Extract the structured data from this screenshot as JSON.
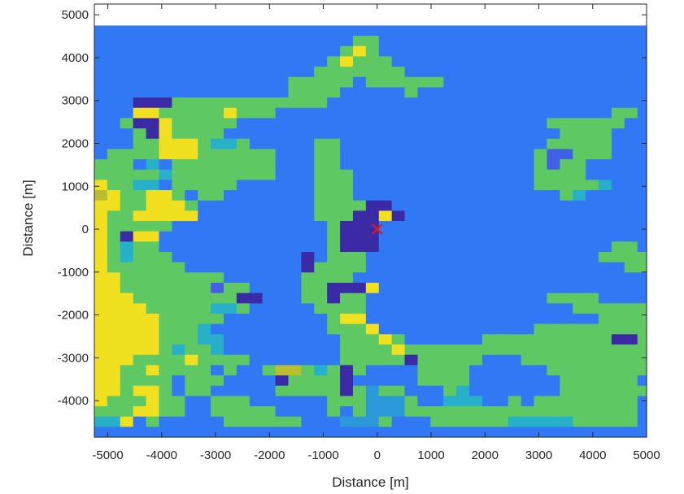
{
  "chart_data": {
    "type": "heatmap",
    "title": "",
    "xlabel": "Distance [m]",
    "ylabel": "Distance [m]",
    "xlim": [
      -5250,
      5000
    ],
    "ylim": [
      -4850,
      5250
    ],
    "xticks": [
      -5000,
      -4000,
      -3000,
      -2000,
      -1000,
      0,
      1000,
      2000,
      3000,
      4000,
      5000
    ],
    "xtick_labels": [
      "-5000",
      "-4000",
      "-3000",
      "-2000",
      "-1000",
      "0",
      "1000",
      "2000",
      "3000",
      "4000",
      "5000"
    ],
    "yticks": [
      -4000,
      -3000,
      -2000,
      -1000,
      0,
      1000,
      2000,
      3000,
      4000,
      5000
    ],
    "ytick_labels": [
      "-4000",
      "-3000",
      "-2000",
      "-1000",
      "0",
      "1000",
      "2000",
      "3000",
      "4000",
      "5000"
    ],
    "grid": false,
    "cell_size_m": 240,
    "x_start_m": -5250,
    "y_start_m": -4850,
    "colors": {
      "B": "#3179f4",
      "G": "#5ec962",
      "Y": "#f1e01f",
      "N": "#3b2aa6",
      "C": "#27b0c9",
      "L": "#2c9ad8",
      "O": "#bcbe30",
      "M": "#4160e6"
    },
    "rows_top_to_bottom": [
      "BBBBBBBBBBBBBBBBBBBBBBBBBBBBBBBBBBBBBBBBBBB",
      "BBBBBBBBBBBBBBBBBBBBGGBBBBBBBBBBBBBBBBBBBBB",
      "BBBBBBBBBBBBBBBBBBBGYGBBBBBBBBBBBBBBBBBBBBB",
      "BBBBBBBBBBBBBBBBBBGYGGGBBBBBBBBBBBBBBBBBBBB",
      "BBBBBBBBBBBBBBBBBGGGGGGGBBBBBBBBBBBBBBBBBBB",
      "BBBBBBBBBBBBBBBGGGGGBGGGGGGBBBBBBBBBBBBBBBB",
      "BBBBBBBBBBBBBBBGGGGBBBBBGBBBBBBBBBBBBBBBBBB",
      "BBBNNNGGGGGGGGGGGGBBBBBBBBBBBBBBBBBBBBBBBBB",
      "BBBYYGGGGGYGGGBBBBBBBBBBBBBBBBBBBBBBBBBBGGB",
      "BBGNNYGGGGGBBBBBBBBBBBBBBBBBBBBBBBBGGGGGGBB",
      "BBBGNYGGGGBBBBBBBBBBBBBBBBBBBBBBBBBBGGGGBBB",
      "BBBGGYYYGCCGBBBBBGGBBBBBBBBBBBBBBBBGGGGGBBB",
      "BGGGGYYYGGGGGGBBBGGBBBBBBBBBBBBBBBGMMGGGBBB",
      "GGGBCBGGGGGGGGBBBGGBBBBBBBBBBBBBBBGMGGBBBBB",
      "GGGGGCGGGGGGGGBBBGGGBBBBBBBBBBBBBBGGGGBBBBB",
      "YGGCCBGGGGGBBBBBBGGGBBBBBBBBBBBBBBGGGGGCBBB",
      "OYGGYYGBGGBBBBBBBGGGBBBBBBBBBBBBBBBBGCBBBBB",
      "YYGGYYYGBBBBBBBBBGGGGNNBBBBBBBBBBBBBBBBBBBB",
      "YGGYYYYYBBBBBBBBBGGGNNYNBBBBBBBBBBBBBBBBBBB",
      "YGGGGGBBBBBBBBBBBBGNNNBBBBBBBBBBBBBBBBBBBBB",
      "YGNYYBBBBBBBBBBBBBGNNNBBBBBBBBBBBBBBBBBBBBB",
      "YGCGGBBBBBBBBBBBBBGNNNBBBBBBBBBBBBBBBBBBGGB",
      "YGCGGGBBBBBBBBBBNBGGGBBBBBBBBBBBBBBBBBBGGGG",
      "YGGGGGGBBBBBBBBBNGGGGBBBBBBBBBBBBBBBBBBBBGG",
      "YYGGGGGGGGBBBBBBGGGGBBBBBBBBBBBBBBBBBBBBBBB",
      "YYGGGGGGGMGGBBBBGGNNNYBBBBBBBBBBBBBBBBBBBBB",
      "YYYGGGGGGGGNNBBBGGNGGBBBBBBBBBBBBBBGGGGBBBB",
      "YYYYGGGGGCCGBBBBBGGGGBBBBBBBBBBBBBBBBGGGGGG",
      "YYYYYGGGGGBBBBBBBBGYYBBBBBBBBBBBBBBBBBBGGGG",
      "YYYYYGGGCBBBBBBBBBGGGYBBBBBBBBBBBBGGGGGGGGG",
      "YYYYYGGGCCBBBBBBBBBGGGYGBBBBBBGGGGGGGGGGNNG",
      "YYYYYGCGGCBBBBBBBBBGGGGYGGGGGGGGGGGGGGGGGGG",
      "YYYGGGGYGGGGBBBBBBBGGGGGNGGGGGBBBGGGGGGGGGG",
      "YYGGYGGGGBGBBGOOGCGNGBBBBGGGGBBBBBBGGGGGGGG",
      "YYGGGGBGGGBBBBNGGGGNBBBBBGGGGBBBBBBBGGGGGGB",
      "YYGYYGBGGBBBBBGGGGGNGLGGBBBGCBBBBBBBGGGGGGG",
      "YGGGYGGBBGGGBBBBBBGGGLLLGBBCCCBBGBGGGGGGGGB",
      "GGGYYGGBBGGGGGBBBBGBGLLLGGGGGGGGGGGGGGGGGGB",
      "CCYBGBBBBBGGGGGGBBBLLLGBBBGGGGGGCCCCCGGGGGB",
      "BBBBBBBBBBBBBBBBBBBBBBBBBBBBBBBBBBBBBBBBBBB"
    ],
    "annotations": [
      {
        "type": "marker",
        "symbol": "x",
        "color": "#e8151e",
        "x": 0,
        "y": 0
      }
    ]
  }
}
